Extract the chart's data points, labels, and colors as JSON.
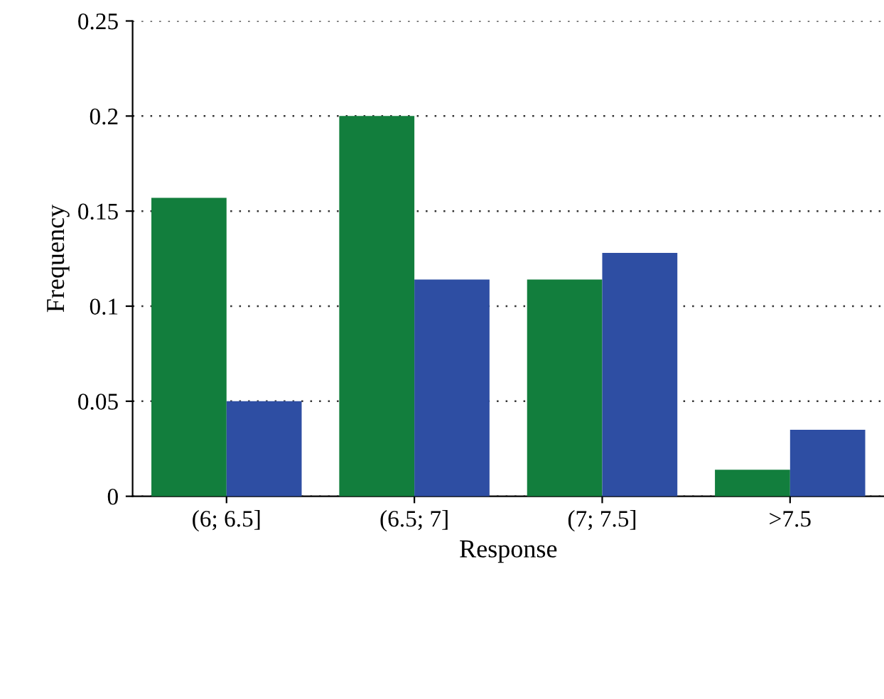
{
  "chart_data": {
    "type": "bar",
    "xlabel": "Response",
    "ylabel": "Frequency",
    "categories": [
      "(6; 6.5]",
      "(6.5; 7]",
      "(7; 7.5]",
      ">7.5"
    ],
    "series": [
      {
        "color": "#127e3d",
        "values": [
          0.157,
          0.2,
          0.114,
          0.014
        ]
      },
      {
        "color": "#2e4ea3",
        "values": [
          0.05,
          0.114,
          0.128,
          0.035
        ]
      }
    ],
    "ylim": [
      0,
      0.25
    ],
    "yticks": [
      0,
      0.05,
      0.1,
      0.15,
      0.2,
      0.25
    ],
    "grid": "y",
    "line_style": "dotted"
  }
}
